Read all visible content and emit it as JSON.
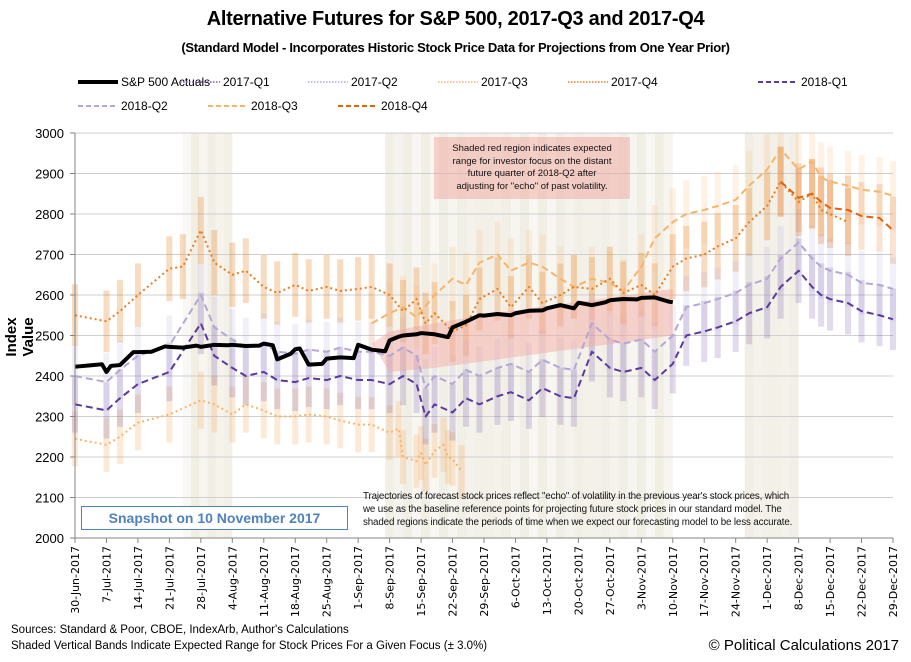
{
  "chart_data": {
    "type": "line",
    "title": "Alternative Futures for S&P 500, 2017-Q3 and 2017-Q4",
    "subtitle": "(Standard Model - Incorporates Historic Stock Price Data for Projections from One Year Prior)",
    "xlabel": "",
    "ylabel": "Index Value",
    "ylim": [
      2000,
      3000
    ],
    "yticks": [
      2000,
      2100,
      2200,
      2300,
      2400,
      2500,
      2600,
      2700,
      2800,
      2900,
      3000
    ],
    "xticks": [
      "30-Jun-2017",
      "7-Jul-2017",
      "14-Jul-2017",
      "21-Jul-2017",
      "28-Jul-2017",
      "4-Aug-2017",
      "11-Aug-2017",
      "18-Aug-2017",
      "25-Aug-2017",
      "1-Sep-2017",
      "8-Sep-2017",
      "15-Sep-2017",
      "22-Sep-2017",
      "29-Sep-2017",
      "6-Oct-2017",
      "13-Oct-2017",
      "20-Oct-2017",
      "27-Oct-2017",
      "3-Nov-2017",
      "10-Nov-2017",
      "17-Nov-2017",
      "24-Nov-2017",
      "1-Dec-2017",
      "8-Dec-2017",
      "15-Dec-2017",
      "22-Dec-2017",
      "29-Dec-2017"
    ],
    "x_days_range": [
      0,
      182
    ],
    "grid": true,
    "legend_position": "top",
    "range_band_pct": 3.0,
    "series": [
      {
        "name": "S&P 500 Actuals",
        "color": "#000000",
        "style": "solid",
        "x": [
          0,
          3,
          6,
          7,
          8,
          10,
          13,
          14,
          17,
          20,
          21,
          24,
          27,
          28,
          31,
          34,
          35,
          38,
          41,
          42,
          44,
          45,
          48,
          49,
          50,
          52,
          55,
          56,
          59,
          62,
          63,
          66,
          69,
          70,
          72,
          73,
          76,
          77,
          80,
          83,
          84,
          87,
          90,
          91,
          94,
          97,
          98,
          101,
          104,
          105,
          108,
          111,
          112,
          115,
          118,
          119,
          122,
          125,
          126,
          129,
          132,
          133
        ],
        "y": [
          2423,
          2426,
          2429,
          2410,
          2425,
          2427,
          2459,
          2459,
          2460,
          2473,
          2472,
          2470,
          2475,
          2472,
          2477,
          2476,
          2477,
          2474,
          2475,
          2480,
          2476,
          2441,
          2455,
          2466,
          2468,
          2428,
          2430,
          2443,
          2446,
          2444,
          2477,
          2465,
          2461,
          2488,
          2497,
          2500,
          2503,
          2506,
          2503,
          2496,
          2520,
          2534,
          2550,
          2549,
          2553,
          2550,
          2555,
          2561,
          2562,
          2567,
          2575,
          2567,
          2581,
          2575,
          2582,
          2587,
          2590,
          2589,
          2593,
          2594,
          2584,
          2582
        ]
      },
      {
        "name": "2017-Q1",
        "color": "#7b5ea7",
        "style": "dotted",
        "x": [],
        "y": []
      },
      {
        "name": "2017-Q2",
        "color": "#b4a7d6",
        "style": "dotted",
        "x": [],
        "y": []
      },
      {
        "name": "2017-Q3",
        "color": "#f7b56b",
        "style": "dotted",
        "x": [
          0,
          7,
          10,
          14,
          21,
          28,
          31,
          35,
          38,
          42,
          45,
          49,
          52,
          56,
          59,
          63,
          66,
          70,
          72,
          73,
          76,
          77,
          78,
          80,
          82,
          83,
          84,
          86
        ],
        "y": [
          2245,
          2230,
          2250,
          2285,
          2305,
          2340,
          2330,
          2305,
          2330,
          2315,
          2300,
          2300,
          2305,
          2300,
          2290,
          2280,
          2280,
          2260,
          2270,
          2200,
          2190,
          2210,
          2180,
          2215,
          2230,
          2200,
          2195,
          2165
        ]
      },
      {
        "name": "2017-Q4",
        "color": "#e67e22",
        "style": "dotted",
        "x": [
          0,
          7,
          10,
          14,
          21,
          24,
          28,
          31,
          35,
          38,
          42,
          45,
          49,
          52,
          56,
          59,
          63,
          66,
          70,
          73,
          76,
          78,
          80,
          84,
          87,
          90,
          94,
          97,
          101,
          104,
          108,
          111,
          115,
          119,
          122,
          126,
          129,
          133,
          136,
          140,
          143,
          147,
          150,
          154,
          157,
          161,
          164,
          166,
          168,
          172
        ],
        "y": [
          2550,
          2535,
          2560,
          2600,
          2665,
          2670,
          2760,
          2680,
          2650,
          2660,
          2620,
          2605,
          2625,
          2610,
          2620,
          2610,
          2615,
          2620,
          2600,
          2560,
          2590,
          2530,
          2555,
          2510,
          2525,
          2590,
          2615,
          2570,
          2620,
          2580,
          2600,
          2620,
          2615,
          2640,
          2605,
          2625,
          2600,
          2670,
          2690,
          2700,
          2720,
          2740,
          2780,
          2820,
          2880,
          2830,
          2850,
          2810,
          2800,
          2780
        ]
      },
      {
        "name": "2018-Q1",
        "color": "#5b3a9b",
        "style": "dashed",
        "x": [
          0,
          7,
          10,
          14,
          21,
          28,
          31,
          35,
          38,
          42,
          45,
          49,
          52,
          56,
          59,
          63,
          66,
          70,
          73,
          76,
          78,
          80,
          84,
          87,
          90,
          94,
          97,
          101,
          104,
          108,
          111,
          115,
          119,
          122,
          126,
          129,
          133,
          136,
          140,
          143,
          147,
          150,
          154,
          157,
          161,
          164,
          166,
          168,
          172,
          175,
          179,
          182
        ],
        "y": [
          2330,
          2315,
          2345,
          2380,
          2410,
          2530,
          2450,
          2420,
          2400,
          2410,
          2390,
          2385,
          2395,
          2390,
          2400,
          2390,
          2390,
          2380,
          2400,
          2380,
          2300,
          2330,
          2310,
          2345,
          2330,
          2350,
          2360,
          2340,
          2370,
          2350,
          2345,
          2460,
          2420,
          2410,
          2420,
          2390,
          2430,
          2500,
          2510,
          2520,
          2535,
          2555,
          2570,
          2620,
          2660,
          2620,
          2600,
          2590,
          2580,
          2560,
          2550,
          2540
        ]
      },
      {
        "name": "2018-Q2",
        "color": "#b4a7d6",
        "style": "dashed",
        "x": [
          0,
          7,
          10,
          14,
          21,
          28,
          31,
          35,
          38,
          42,
          45,
          49,
          52,
          56,
          59,
          63,
          66,
          70,
          73,
          76,
          78,
          80,
          84,
          87,
          90,
          94,
          97,
          101,
          104,
          108,
          111,
          115,
          119,
          122,
          126,
          129,
          133,
          136,
          140,
          143,
          147,
          150,
          154,
          157,
          161,
          164,
          166,
          168,
          172,
          175,
          179,
          182
        ],
        "y": [
          2400,
          2385,
          2415,
          2450,
          2475,
          2600,
          2520,
          2490,
          2470,
          2480,
          2460,
          2455,
          2465,
          2460,
          2470,
          2460,
          2460,
          2450,
          2470,
          2450,
          2370,
          2400,
          2380,
          2415,
          2400,
          2420,
          2430,
          2410,
          2440,
          2420,
          2415,
          2530,
          2490,
          2480,
          2490,
          2460,
          2500,
          2570,
          2580,
          2590,
          2605,
          2625,
          2640,
          2690,
          2730,
          2690,
          2670,
          2660,
          2650,
          2630,
          2625,
          2615
        ]
      },
      {
        "name": "2018-Q3",
        "color": "#f7b56b",
        "style": "dashed",
        "x": [
          66,
          70,
          73,
          76,
          80,
          84,
          87,
          90,
          94,
          97,
          101,
          104,
          108,
          111,
          115,
          119,
          122,
          126,
          129,
          133,
          136,
          140,
          143,
          147,
          150,
          154,
          157,
          161,
          164,
          166,
          168,
          172,
          175,
          179,
          182
        ],
        "y": [
          2530,
          2555,
          2570,
          2545,
          2600,
          2640,
          2625,
          2680,
          2700,
          2660,
          2680,
          2670,
          2640,
          2620,
          2640,
          2630,
          2610,
          2670,
          2740,
          2780,
          2800,
          2810,
          2820,
          2835,
          2870,
          2910,
          2960,
          2910,
          2930,
          2890,
          2880,
          2870,
          2860,
          2855,
          2845
        ]
      },
      {
        "name": "2018-Q4",
        "color": "#e0620d",
        "style": "dashed",
        "x": [
          157,
          161,
          164,
          166,
          168,
          172,
          175,
          179,
          182
        ],
        "y": [
          2880,
          2840,
          2850,
          2830,
          2815,
          2810,
          2795,
          2790,
          2760
        ]
      }
    ],
    "shaded_vertical_bands_days": [
      [
        24,
        35
      ],
      [
        69,
        133
      ],
      [
        149,
        161
      ]
    ],
    "red_region": {
      "x": [
        66,
        70,
        80,
        90,
        100,
        110,
        120,
        133
      ],
      "low": [
        2480,
        2410,
        2420,
        2435,
        2450,
        2465,
        2480,
        2500
      ],
      "high": [
        2480,
        2510,
        2530,
        2550,
        2565,
        2580,
        2595,
        2615
      ]
    },
    "annotations": [
      "Shaded red region indicates expected range for investor focus on the distant future quarter of 2018-Q2  after adjusting for \"echo\" of past volatility.",
      "Trajectories of forecast stock prices reflect \"echo\" of volatility in  the previous year's stock prices, which we use as the baseline reference points for projecting future stock prices in our standard model.   The shaded regions indicate the periods of time when we expect our forecasting model to be less accurate."
    ]
  },
  "text": {
    "title": "Alternative Futures for S&P 500, 2017-Q3 and 2017-Q4",
    "subtitle": "(Standard Model - Incorporates Historic Stock Price Data for Projections from One Year Prior)",
    "ylabel": "Index Value",
    "red_note_lines": [
      "Shaded red region indicates expected",
      "range for investor focus on the distant",
      "future quarter of 2018-Q2  after",
      "adjusting for \"echo\" of past volatility."
    ],
    "bottom_note_lines": [
      "Trajectories of forecast stock prices reflect \"echo\" of volatility in  the previous year's stock prices, which",
      "we use as the baseline reference points for projecting future stock prices in our standard model.   The",
      "shaded regions indicate the periods of time when we expect our forecasting model to be less accurate."
    ],
    "snapshot": "Snapshot on 10 November 2017",
    "sources": "Sources: Standard & Poor, CBOE, IndexArb, Author's Calculations",
    "bands_note": "Shaded Vertical Bands Indicate Expected Range for Stock Prices For a Given Focus (± 3.0%)",
    "copyright": "© Political Calculations 2017"
  },
  "legend": [
    {
      "label": "S&P 500 Actuals",
      "color": "#000000",
      "style": "solid"
    },
    {
      "label": "2017-Q1",
      "color": "#7b5ea7",
      "style": "dotted"
    },
    {
      "label": "2017-Q2",
      "color": "#b4a7d6",
      "style": "dotted"
    },
    {
      "label": "2017-Q3",
      "color": "#f7b56b",
      "style": "dotted"
    },
    {
      "label": "2017-Q4",
      "color": "#e67e22",
      "style": "dotted"
    },
    {
      "label": "2018-Q1",
      "color": "#5b3a9b",
      "style": "dashed"
    },
    {
      "label": "2018-Q2",
      "color": "#b4a7d6",
      "style": "dashed"
    },
    {
      "label": "2018-Q3",
      "color": "#f7b56b",
      "style": "dashed"
    },
    {
      "label": "2018-Q4",
      "color": "#e0620d",
      "style": "dashed"
    }
  ]
}
